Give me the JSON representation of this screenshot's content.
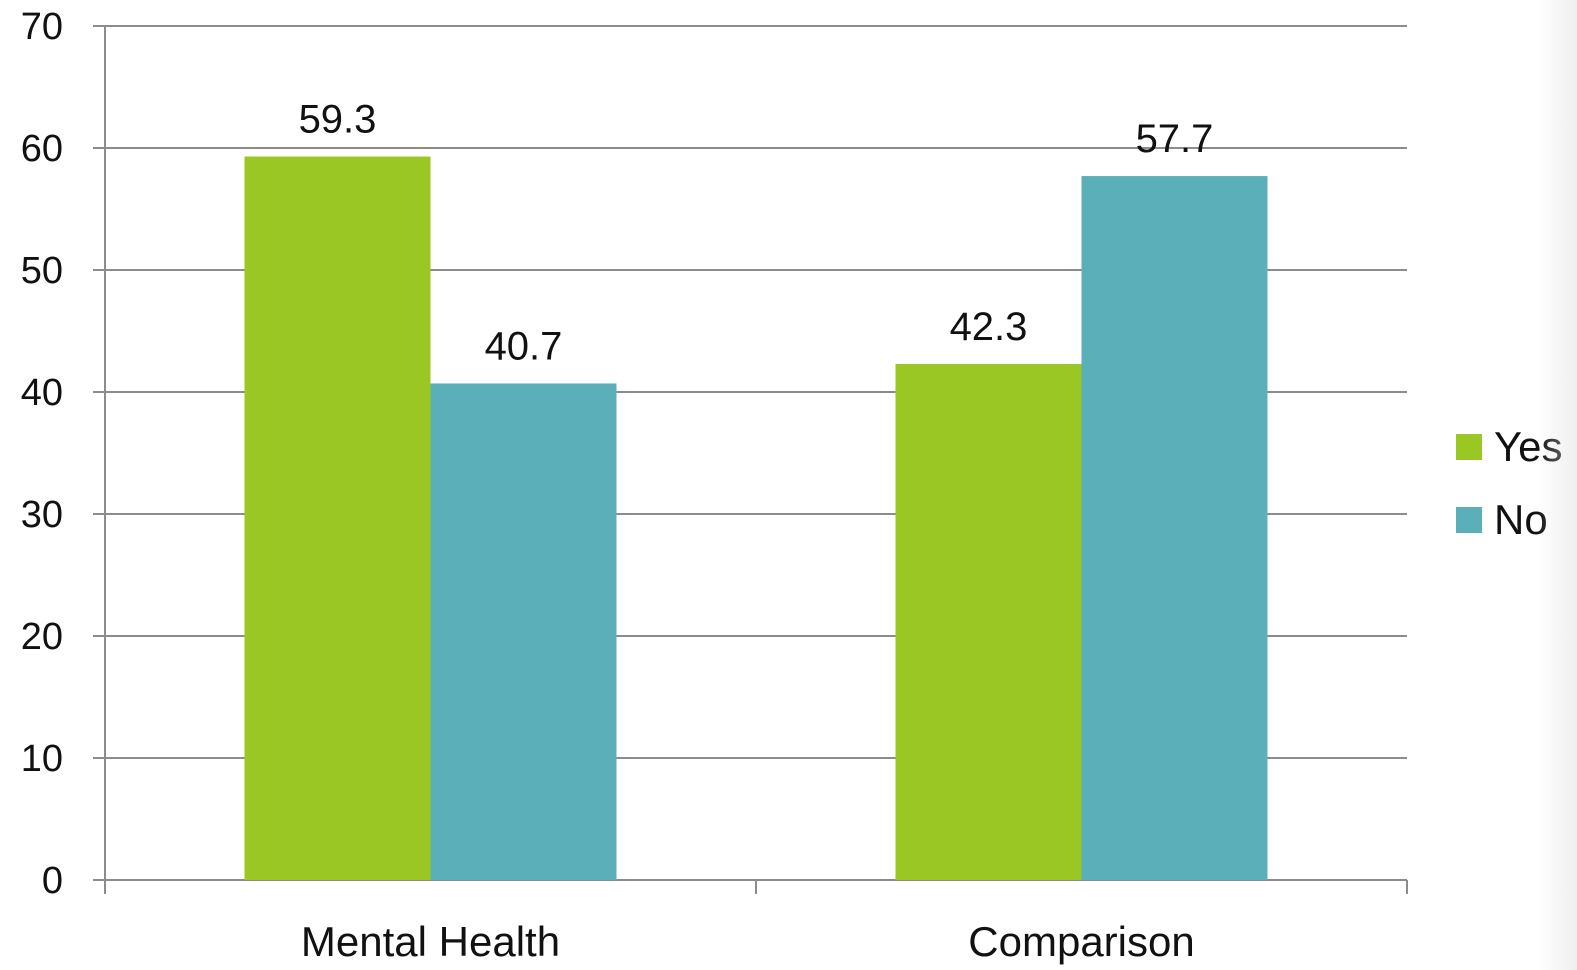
{
  "chart_data": {
    "type": "bar",
    "title": "",
    "xlabel": "",
    "ylabel": "",
    "categories": [
      "Mental Health",
      "Comparison"
    ],
    "series": [
      {
        "name": "Yes",
        "color": "#9BC724",
        "values": [
          59.3,
          42.3
        ]
      },
      {
        "name": "No",
        "color": "#5BAFB8",
        "values": [
          40.7,
          57.7
        ]
      }
    ],
    "ylim": [
      0,
      70
    ],
    "yticks": [
      0,
      10,
      20,
      30,
      40,
      50,
      60,
      70
    ],
    "grid": true,
    "data_labels": true,
    "legend_position": "right"
  }
}
